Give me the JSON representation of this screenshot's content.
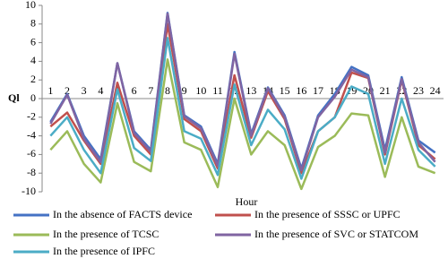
{
  "chart_data": {
    "type": "line",
    "categories": [
      "1",
      "2",
      "3",
      "4",
      "5",
      "6",
      "7",
      "8",
      "9",
      "10",
      "11",
      "12",
      "13",
      "14",
      "15",
      "16",
      "17",
      "18",
      "19",
      "20",
      "21",
      "22",
      "23",
      "24"
    ],
    "y_label": "Ql",
    "x_label": "Hour",
    "ylim": [
      -10,
      10
    ],
    "yticks": [
      -10,
      -8,
      -6,
      -4,
      -2,
      0,
      2,
      4,
      6,
      8,
      10
    ],
    "grid": false,
    "series": [
      {
        "name": "In the absence of FACTS device",
        "color": "#4472c4",
        "values": [
          -2.5,
          0.5,
          -4,
          -6.5,
          3.8,
          -3.5,
          -5.5,
          9.2,
          -1.8,
          -3,
          -7,
          5,
          -3.8,
          1.2,
          -1.8,
          -7.5,
          -1.8,
          0.5,
          3.4,
          2.5,
          -5.5,
          2.3,
          -4.5,
          -5.8
        ]
      },
      {
        "name": "In the presence of SSSC or UPFC",
        "color": "#c0504d",
        "values": [
          -3,
          -1.5,
          -4.5,
          -7,
          1.7,
          -4,
          -6,
          8,
          -2.2,
          -3.5,
          -7.5,
          2.5,
          -4.2,
          0.8,
          -2.2,
          -8,
          -3.5,
          -2,
          2.8,
          2.2,
          -6,
          2,
          -5,
          -6.5
        ]
      },
      {
        "name": "In the presence of TCSC",
        "color": "#9bbb59",
        "values": [
          -5.5,
          -3.5,
          -7,
          -9,
          -0.5,
          -6.8,
          -7.8,
          4.2,
          -4.7,
          -5.5,
          -9.5,
          0,
          -6,
          -3.5,
          -5,
          -9.7,
          -5.2,
          -4,
          -1.6,
          -1.8,
          -8.4,
          -2,
          -7.3,
          -8
        ]
      },
      {
        "name": "In the presence of SVC or STATCOM",
        "color": "#8064a2",
        "values": [
          -2.7,
          0.4,
          -4.3,
          -6.8,
          3.8,
          -3.7,
          -5.7,
          9.1,
          -1.9,
          -3.2,
          -7.2,
          4.8,
          -4,
          1.1,
          -2,
          -7.7,
          -2,
          0.2,
          3.1,
          2.3,
          -5.8,
          2.1,
          -4.7,
          -6.8
        ]
      },
      {
        "name": "In the presence of IPFC",
        "color": "#4bacc6",
        "values": [
          -4,
          -2,
          -5.5,
          -8,
          1,
          -5.3,
          -6.7,
          6.5,
          -3.5,
          -4.3,
          -8.2,
          1.5,
          -5,
          -1.2,
          -3.3,
          -8.6,
          -3.5,
          -2,
          1.3,
          0.5,
          -7,
          0,
          -5.5,
          -7.3
        ]
      }
    ]
  }
}
